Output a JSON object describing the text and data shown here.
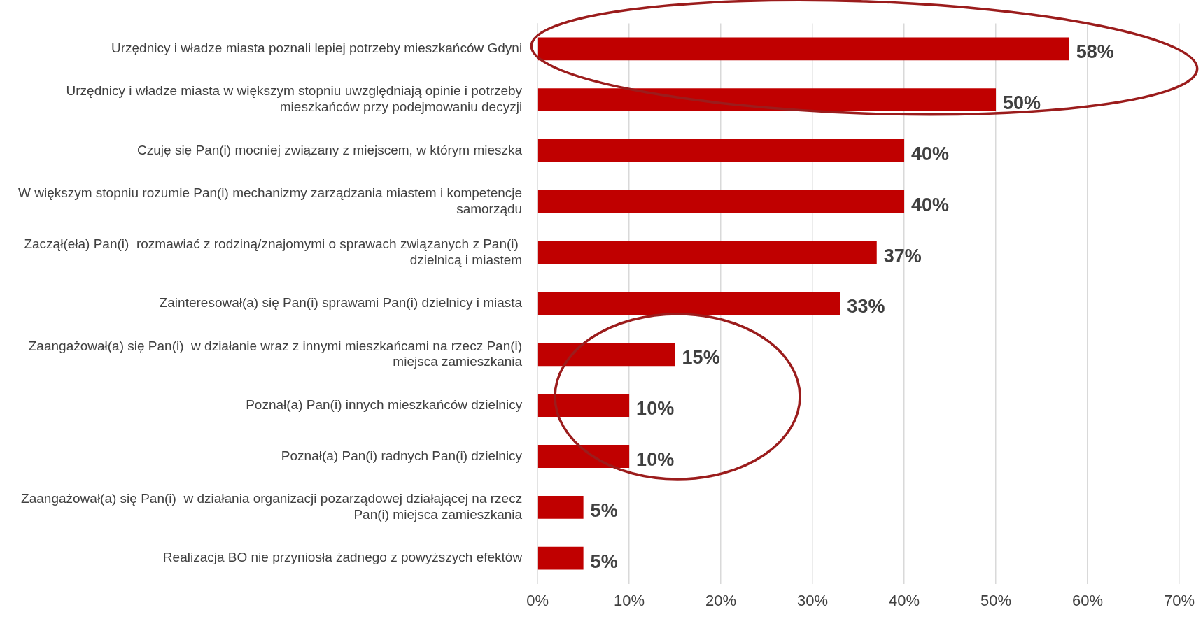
{
  "chart_data": {
    "type": "bar",
    "orientation": "horizontal",
    "categories": [
      "Urzędnicy i władze miasta poznali lepiej potrzeby mieszkańców Gdyni",
      "Urzędnicy i władze miasta w większym stopniu uwzględniają opinie i potrzeby mieszkańców przy podejmowaniu decyzji",
      "Czuję się Pan(i) mocniej związany z miejscem, w którym mieszka",
      "W większym stopniu rozumie Pan(i) mechanizmy zarządzania miastem i kompetencje samorządu",
      "Zaczął(eła) Pan(i)  rozmawiać z rodziną/znajomymi o sprawach związanych z Pan(i)  dzielnicą i miastem",
      "Zainteresował(a) się Pan(i) sprawami Pan(i) dzielnicy i miasta",
      "Zaangażował(a) się Pan(i)  w działanie wraz z innymi mieszkańcami na rzecz Pan(i) miejsca zamieszkania",
      "Poznał(a) Pan(i) innych mieszkańców dzielnicy",
      "Poznał(a) Pan(i) radnych Pan(i) dzielnicy",
      "Zaangażował(a) się Pan(i)  w działania organizacji pozarządowej działającej na rzecz Pan(i) miejsca zamieszkania",
      "Realizacja BO nie przyniosła żadnego z powyższych efektów"
    ],
    "series": [
      {
        "color": "#c00000",
        "values": [
          58,
          50,
          40,
          40,
          37,
          33,
          15,
          10,
          10,
          5,
          5
        ]
      }
    ],
    "value_labels": [
      "58%",
      "50%",
      "40%",
      "40%",
      "37%",
      "33%",
      "15%",
      "10%",
      "10%",
      "5%",
      "5%"
    ],
    "xlim": [
      0,
      70
    ],
    "xticks": [
      {
        "value": 0,
        "label": "0%"
      },
      {
        "value": 10,
        "label": "10%"
      },
      {
        "value": 20,
        "label": "20%"
      },
      {
        "value": 30,
        "label": "30%"
      },
      {
        "value": 40,
        "label": "40%"
      },
      {
        "value": 50,
        "label": "50%"
      },
      {
        "value": 60,
        "label": "60%"
      },
      {
        "value": 70,
        "label": "70%"
      }
    ],
    "grid": "x",
    "legend": false
  }
}
